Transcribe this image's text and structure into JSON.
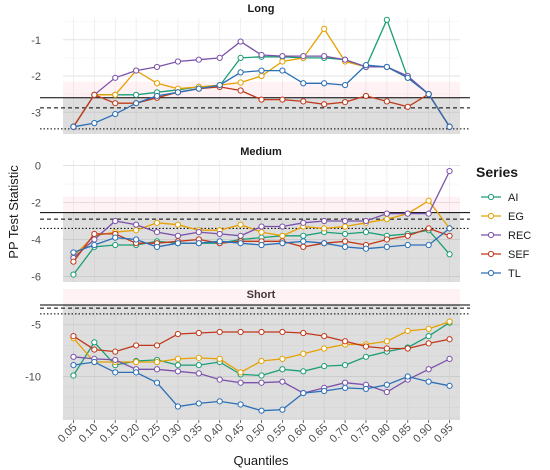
{
  "chart_data": {
    "type": "line",
    "ylabel": "PP Test Statistic",
    "xlabel": "Quantiles",
    "legend_title": "Series",
    "legend_position": "right",
    "grid": true,
    "x_tick_labels": [
      "0.05",
      "0.10",
      "0.15",
      "0.20",
      "0.25",
      "0.30",
      "0.35",
      "0.40",
      "0.45",
      "0.50",
      "0.55",
      "0.60",
      "0.65",
      "0.70",
      "0.75",
      "0.80",
      "0.85",
      "0.90",
      "0.95"
    ],
    "x": [
      0.05,
      0.1,
      0.15,
      0.2,
      0.25,
      0.3,
      0.35,
      0.4,
      0.45,
      0.5,
      0.55,
      0.6,
      0.65,
      0.7,
      0.75,
      0.8,
      0.85,
      0.9,
      0.95
    ],
    "series_colors": {
      "AI": "#1b9e77",
      "EG": "#e6a100",
      "REC": "#7b52ab",
      "SEF": "#c0391b",
      "TL": "#2b6fb7"
    },
    "panels": [
      {
        "title": "Long",
        "ylim": [
          -3.6,
          -0.4
        ],
        "yticks": [
          -1,
          -2,
          -3
        ],
        "ytick_labels": [
          "-1",
          "-2",
          "-3"
        ],
        "ref_lines": {
          "solid": -2.6,
          "dashed": -2.88,
          "dotted": -3.46
        },
        "series": [
          {
            "name": "AI",
            "values": [
              -3.4,
              -2.52,
              -2.52,
              -2.52,
              -2.45,
              -2.38,
              -2.3,
              -2.27,
              -1.5,
              -1.47,
              -1.47,
              -1.5,
              -1.5,
              -1.55,
              -1.75,
              -0.45,
              -2.05,
              -2.5,
              -3.4
            ]
          },
          {
            "name": "EG",
            "values": [
              -3.4,
              -2.52,
              -2.52,
              -1.85,
              -2.2,
              -2.35,
              -2.3,
              -2.25,
              -2.18,
              -2.0,
              -1.6,
              -1.5,
              -0.7,
              -1.6,
              -1.75,
              -1.75,
              -2.05,
              -2.5,
              -3.4
            ]
          },
          {
            "name": "REC",
            "values": [
              -3.4,
              -2.52,
              -2.05,
              -1.85,
              -1.75,
              -1.6,
              -1.55,
              -1.5,
              -1.05,
              -1.42,
              -1.45,
              -1.45,
              -1.45,
              -1.55,
              -1.75,
              -1.75,
              -2.0,
              -2.5,
              -3.4
            ]
          },
          {
            "name": "SEF",
            "values": [
              -3.4,
              -2.52,
              -2.75,
              -2.75,
              -2.6,
              -2.45,
              -2.35,
              -2.3,
              -2.4,
              -2.65,
              -2.65,
              -2.7,
              -2.78,
              -2.72,
              -2.55,
              -2.7,
              -2.85,
              -2.5,
              -3.4
            ]
          },
          {
            "name": "TL",
            "values": [
              -3.4,
              -3.3,
              -3.05,
              -2.75,
              -2.55,
              -2.45,
              -2.35,
              -2.25,
              -1.9,
              -1.85,
              -1.85,
              -2.2,
              -2.2,
              -2.25,
              -1.7,
              -1.75,
              -2.05,
              -2.5,
              -3.4
            ]
          }
        ]
      },
      {
        "title": "Medium",
        "ylim": [
          -6.3,
          0.3
        ],
        "yticks": [
          0,
          -2,
          -4,
          -6
        ],
        "ytick_labels": [
          "0",
          "-2",
          "-4",
          "-6"
        ],
        "ref_lines": {
          "solid": -2.55,
          "dashed": -2.9,
          "dotted": -3.4
        },
        "series": [
          {
            "name": "AI",
            "values": [
              -5.9,
              -4.4,
              -4.3,
              -4.3,
              -4.1,
              -4.2,
              -4.2,
              -4.2,
              -4.0,
              -3.9,
              -3.8,
              -3.8,
              -3.6,
              -3.7,
              -3.6,
              -3.8,
              -3.7,
              -3.5,
              -4.8
            ]
          },
          {
            "name": "EG",
            "values": [
              -4.9,
              -3.8,
              -3.6,
              -3.5,
              -3.1,
              -3.2,
              -3.5,
              -3.5,
              -3.2,
              -3.6,
              -3.8,
              -3.3,
              -3.4,
              -3.3,
              -3.1,
              -2.9,
              -2.6,
              -1.9,
              -3.4
            ]
          },
          {
            "name": "REC",
            "values": [
              -5.0,
              -4.0,
              -3.0,
              -3.2,
              -3.6,
              -3.8,
              -3.6,
              -3.7,
              -3.8,
              -3.3,
              -3.3,
              -3.1,
              -3.0,
              -3.0,
              -3.0,
              -2.6,
              -2.6,
              -2.6,
              -0.3
            ]
          },
          {
            "name": "SEF",
            "values": [
              -5.2,
              -3.7,
              -3.7,
              -4.2,
              -4.2,
              -4.1,
              -4.0,
              -4.2,
              -4.1,
              -4.1,
              -4.1,
              -4.4,
              -4.2,
              -4.1,
              -4.3,
              -4.0,
              -3.8,
              -3.4,
              -3.8
            ]
          },
          {
            "name": "TL",
            "values": [
              -4.7,
              -4.3,
              -3.9,
              -4.0,
              -4.4,
              -4.2,
              -4.2,
              -4.1,
              -4.2,
              -4.3,
              -4.2,
              -4.1,
              -4.2,
              -4.4,
              -4.5,
              -4.4,
              -4.3,
              -4.3,
              -3.4
            ]
          }
        ]
      },
      {
        "title": "Short",
        "ylim": [
          -14.2,
          -3.0
        ],
        "yticks": [
          -5,
          -10
        ],
        "ytick_labels": [
          "-5",
          "-10"
        ],
        "ref_lines": {
          "solid": -3.1,
          "dashed": -3.4,
          "dotted": -3.95
        },
        "series": [
          {
            "name": "AI",
            "values": [
              -9.9,
              -6.7,
              -8.9,
              -8.5,
              -8.4,
              -8.9,
              -8.9,
              -8.6,
              -9.8,
              -9.9,
              -9.3,
              -9.5,
              -9.0,
              -8.9,
              -8.1,
              -7.6,
              -7.2,
              -6.1,
              -4.8
            ]
          },
          {
            "name": "EG",
            "values": [
              -6.3,
              -8.6,
              -8.6,
              -8.6,
              -8.6,
              -8.3,
              -8.2,
              -8.3,
              -9.6,
              -8.5,
              -8.3,
              -7.8,
              -7.3,
              -6.9,
              -6.9,
              -6.6,
              -5.6,
              -5.4,
              -4.7
            ]
          },
          {
            "name": "REC",
            "values": [
              -8.1,
              -8.3,
              -8.4,
              -9.3,
              -9.3,
              -9.5,
              -9.7,
              -10.3,
              -10.6,
              -10.6,
              -10.5,
              -11.6,
              -11.1,
              -10.6,
              -10.8,
              -11.5,
              -10.3,
              -9.3,
              -8.3
            ]
          },
          {
            "name": "SEF",
            "values": [
              -6.1,
              -7.4,
              -7.6,
              -7.0,
              -7.0,
              -5.9,
              -5.8,
              -5.7,
              -5.7,
              -5.7,
              -5.7,
              -5.8,
              -6.1,
              -6.6,
              -7.1,
              -7.3,
              -7.3,
              -6.8,
              -6.4
            ]
          },
          {
            "name": "TL",
            "values": [
              -8.9,
              -8.6,
              -9.6,
              -9.6,
              -10.6,
              -12.9,
              -12.6,
              -12.4,
              -12.7,
              -13.3,
              -13.2,
              -11.6,
              -11.4,
              -11.1,
              -11.2,
              -10.8,
              -10.0,
              -10.5,
              -10.9
            ]
          }
        ]
      }
    ]
  }
}
